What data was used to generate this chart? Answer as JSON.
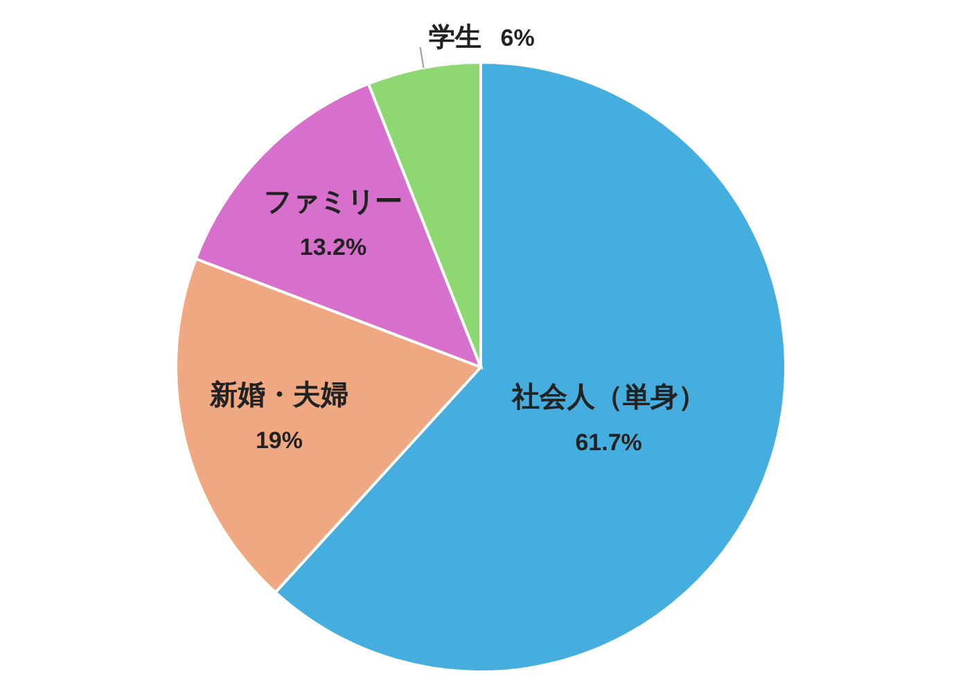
{
  "chart_data": {
    "type": "pie",
    "categories": [
      "社会人（単身）",
      "新婚・夫婦",
      "ファミリー",
      "学生"
    ],
    "values": [
      61.7,
      19,
      13.2,
      6
    ],
    "colors": [
      "#45aede",
      "#f0a882",
      "#d670cc",
      "#8ed872"
    ],
    "value_labels": [
      "61.7%",
      "19%",
      "13.2%",
      "6%"
    ]
  }
}
